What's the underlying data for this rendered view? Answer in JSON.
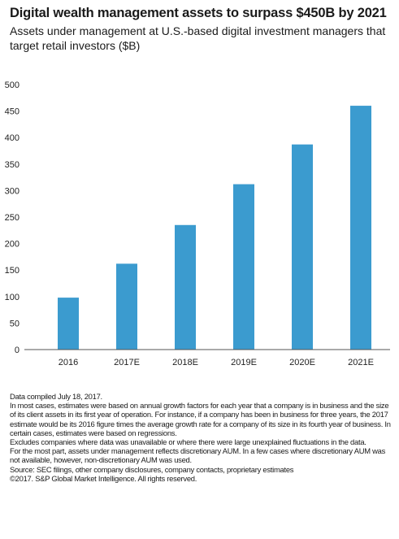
{
  "title": "Digital wealth management assets to surpass $450B by 2021",
  "subtitle": "Assets under management at U.S.-based digital investment managers that target retail investors ($B)",
  "chart_data": {
    "type": "bar",
    "categories": [
      "2016",
      "2017E",
      "2018E",
      "2019E",
      "2020E",
      "2021E"
    ],
    "values": [
      98,
      162,
      235,
      312,
      387,
      460
    ],
    "title": "Digital wealth management assets to surpass $450B by 2021",
    "xlabel": "",
    "ylabel": "",
    "ylim": [
      0,
      500
    ],
    "yticks": [
      0,
      50,
      100,
      150,
      200,
      250,
      300,
      350,
      400,
      450,
      500
    ],
    "grid": false,
    "legend": "none",
    "bar_color": "#3b9bcf"
  },
  "footnotes": [
    "Data compiled July 18, 2017.",
    "In most cases, estimates were based on annual growth factors for each year that a company is in business and the size of its client assets in its first year of operation. For instance, if a company has been in business for three years, the 2017 estimate would be its 2016 figure times the average growth rate for a company of its size in its fourth year of business. In certain cases, estimates were based on regressions.",
    "Excludes companies where data was unavailable or where there were large unexplained fluctuations in the data.",
    "For the most part, assets under management reflects discretionary AUM. In a few cases where discretionary AUM was not available, however, non-discretionary AUM was used.",
    "Source: SEC filings, other company disclosures, company contacts, proprietary estimates",
    "©2017. S&P Global Market Intelligence. All rights reserved."
  ]
}
